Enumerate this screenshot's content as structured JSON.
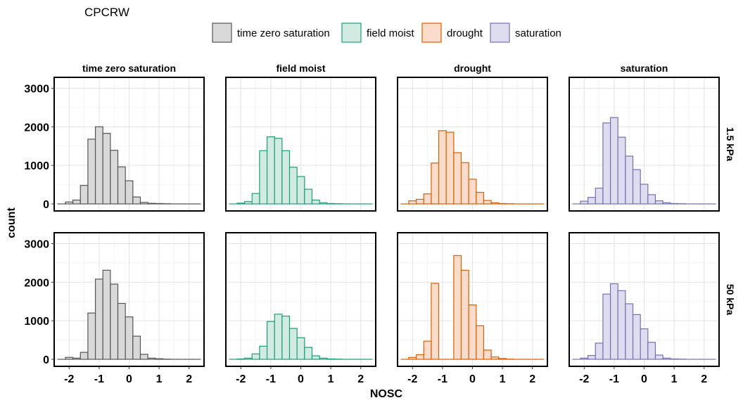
{
  "title": "CPCRW",
  "chart_data": {
    "type": "bar",
    "title": "CPCRW",
    "xlabel": "NOSC",
    "ylabel": "count",
    "xlim": [
      -2.5,
      2.5
    ],
    "ylim": [
      0,
      3100
    ],
    "xticks": [
      -2,
      -1,
      0,
      1,
      2
    ],
    "yticks": [
      0,
      1000,
      2000,
      3000
    ],
    "grid": true,
    "legend_position": "top",
    "bin_centers": [
      -2.25,
      -2.0,
      -1.75,
      -1.5,
      -1.25,
      -1.0,
      -0.75,
      -0.5,
      -0.25,
      0.0,
      0.25,
      0.5,
      0.75,
      1.0,
      1.25,
      1.5,
      1.75,
      2.0,
      2.25
    ],
    "columns": [
      "time zero saturation",
      "field moist",
      "drought",
      "saturation"
    ],
    "rows": [
      "1.5 kPa",
      "50 kPa"
    ],
    "series": [
      {
        "name": "time zero saturation",
        "fill": "#d9d9d9",
        "stroke": "#555555"
      },
      {
        "name": "field moist",
        "fill": "#d2ebe2",
        "stroke": "#1b9e77"
      },
      {
        "name": "drought",
        "fill": "#fbdccb",
        "stroke": "#d95f02"
      },
      {
        "name": "saturation",
        "fill": "#dedcef",
        "stroke": "#7570b3"
      }
    ],
    "panels": [
      {
        "row": "1.5 kPa",
        "column": "time zero saturation",
        "values": [
          0,
          50,
          100,
          480,
          1680,
          2000,
          1830,
          1390,
          960,
          600,
          180,
          40,
          15,
          10,
          5,
          0,
          0,
          0,
          0
        ]
      },
      {
        "row": "1.5 kPa",
        "column": "field moist",
        "values": [
          0,
          20,
          60,
          270,
          1380,
          1740,
          1700,
          1380,
          950,
          710,
          380,
          100,
          30,
          10,
          5,
          0,
          0,
          0,
          0
        ]
      },
      {
        "row": "1.5 kPa",
        "column": "drought",
        "values": [
          0,
          80,
          120,
          260,
          1060,
          1900,
          1860,
          1330,
          1070,
          640,
          300,
          90,
          30,
          10,
          5,
          0,
          0,
          0,
          0
        ]
      },
      {
        "row": "1.5 kPa",
        "column": "saturation",
        "values": [
          0,
          70,
          170,
          410,
          2100,
          2240,
          1730,
          1240,
          890,
          510,
          240,
          80,
          30,
          10,
          5,
          0,
          0,
          0,
          0
        ]
      },
      {
        "row": "50 kPa",
        "column": "time zero saturation",
        "values": [
          0,
          50,
          30,
          180,
          1200,
          2080,
          2310,
          1950,
          1450,
          1100,
          600,
          130,
          30,
          15,
          5,
          0,
          0,
          0,
          0
        ]
      },
      {
        "row": "50 kPa",
        "column": "field moist",
        "values": [
          0,
          10,
          30,
          140,
          340,
          980,
          1170,
          1120,
          800,
          560,
          310,
          90,
          30,
          10,
          5,
          0,
          0,
          0,
          0
        ]
      },
      {
        "row": "50 kPa",
        "column": "drought",
        "values": [
          0,
          50,
          120,
          470,
          1970,
          0,
          0,
          2690,
          2310,
          1410,
          870,
          240,
          60,
          20,
          5,
          0,
          0,
          0,
          0
        ]
      },
      {
        "row": "50 kPa",
        "column": "saturation",
        "values": [
          0,
          30,
          100,
          420,
          1690,
          1960,
          1780,
          1440,
          1160,
          790,
          440,
          110,
          30,
          10,
          5,
          0,
          0,
          0,
          0
        ]
      }
    ]
  }
}
